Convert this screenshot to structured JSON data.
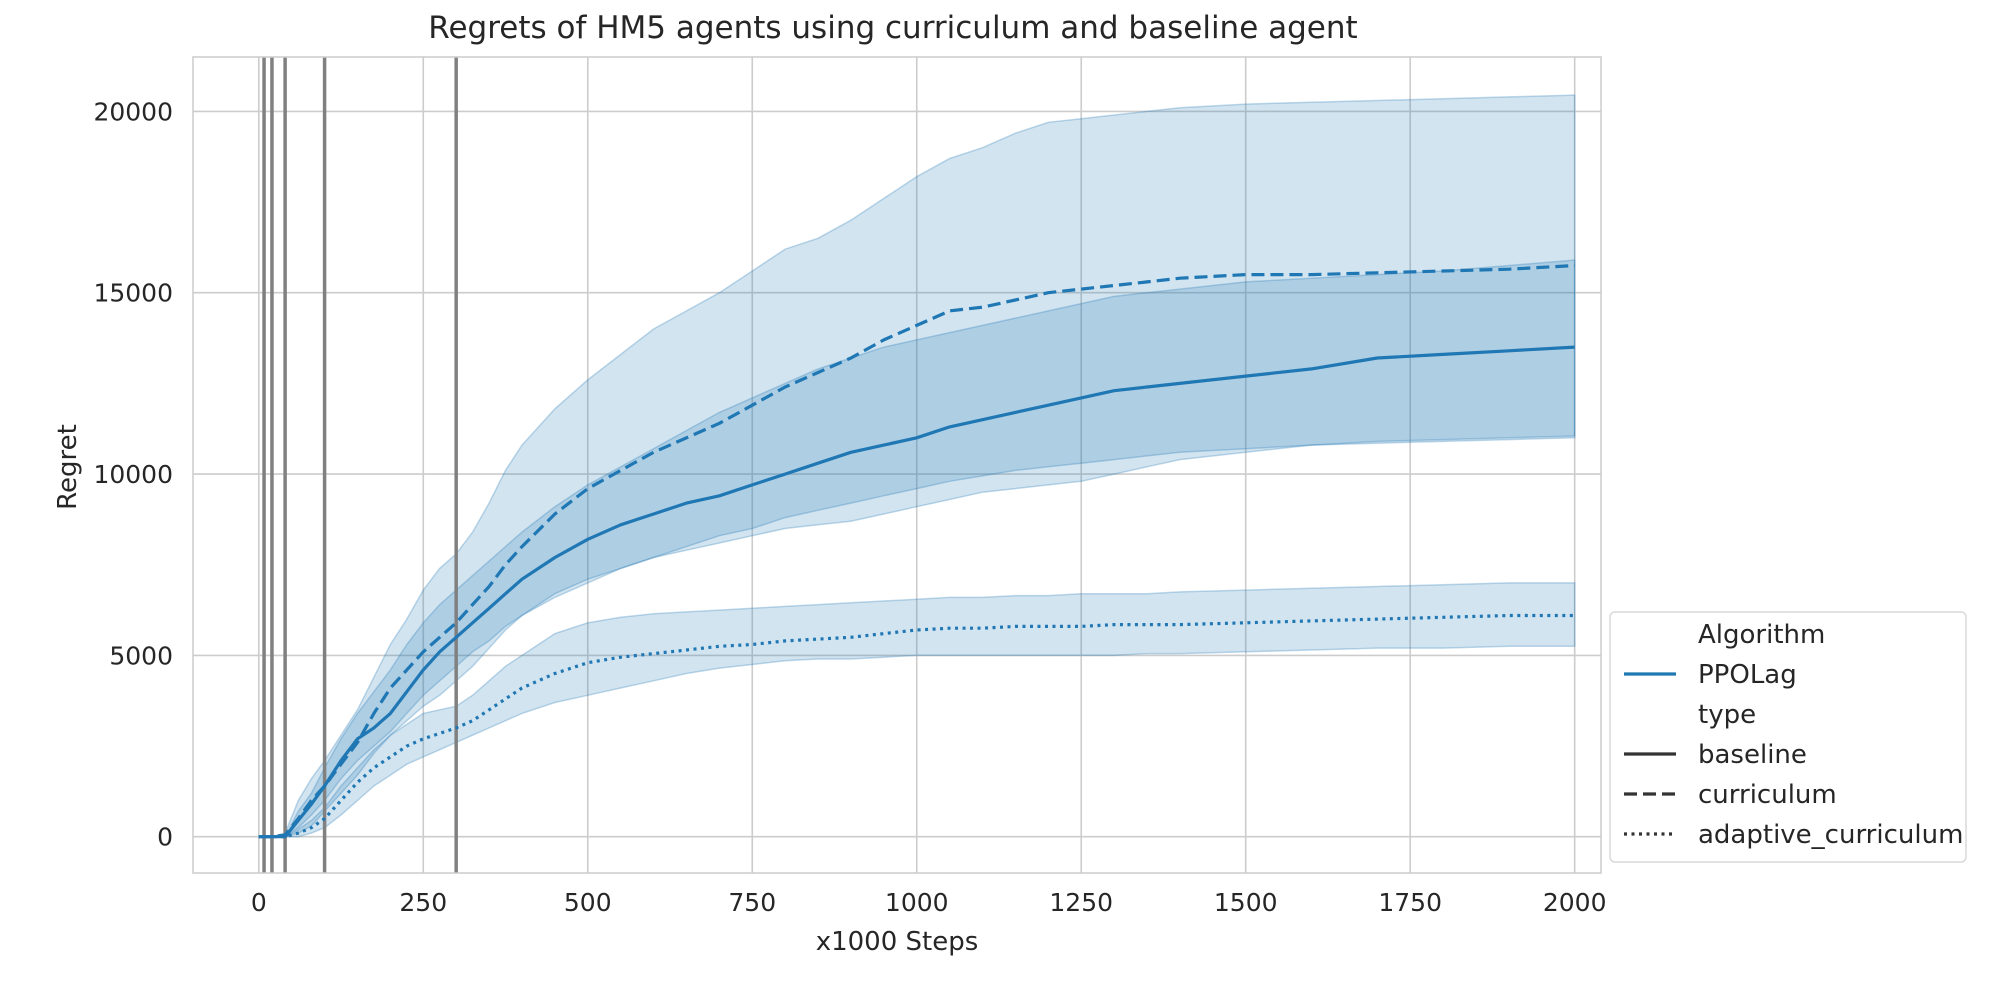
{
  "chart_data": {
    "type": "line",
    "title": "Regrets of HM5 agents using curriculum and baseline agent",
    "xlabel": "x1000 Steps",
    "ylabel": "Regret",
    "xlim": [
      -100,
      2040
    ],
    "ylim": [
      -1000,
      21500
    ],
    "xticks": [
      0,
      250,
      500,
      750,
      1000,
      1250,
      1500,
      1750,
      2000
    ],
    "yticks": [
      0,
      5000,
      10000,
      15000,
      20000
    ],
    "grid": true,
    "color": "#1f77b4",
    "band_color": "#1f77b4",
    "vline_color": "#808080",
    "vertical_lines": [
      8,
      20,
      40,
      100,
      300
    ],
    "legend": {
      "placement": "lower-right, outside",
      "items": [
        {
          "kind": "header",
          "label": "Algorithm"
        },
        {
          "kind": "line",
          "label": "PPOLag",
          "style": "solid",
          "color": "#1f77b4"
        },
        {
          "kind": "header",
          "label": "type"
        },
        {
          "kind": "line",
          "label": "baseline",
          "style": "solid",
          "color": "#333333"
        },
        {
          "kind": "line",
          "label": "curriculum",
          "style": "dashed",
          "color": "#333333"
        },
        {
          "kind": "line",
          "label": "adaptive_curriculum",
          "style": "dotted",
          "color": "#333333"
        }
      ]
    },
    "series": [
      {
        "algorithm": "PPOLag",
        "type": "curriculum",
        "style": "dashed",
        "x": [
          0,
          20,
          40,
          60,
          80,
          100,
          125,
          150,
          175,
          200,
          225,
          250,
          275,
          300,
          325,
          350,
          375,
          400,
          450,
          500,
          550,
          600,
          650,
          700,
          750,
          800,
          850,
          900,
          950,
          1000,
          1050,
          1100,
          1150,
          1200,
          1250,
          1300,
          1350,
          1400,
          1500,
          1600,
          1700,
          1800,
          1900,
          2000
        ],
        "y": [
          0,
          0,
          50,
          500,
          1000,
          1400,
          2000,
          2600,
          3400,
          4100,
          4600,
          5100,
          5500,
          5900,
          6400,
          6900,
          7500,
          8000,
          8900,
          9600,
          10100,
          10600,
          11000,
          11400,
          11900,
          12400,
          12800,
          13200,
          13700,
          14100,
          14500,
          14600,
          14800,
          15000,
          15100,
          15200,
          15300,
          15400,
          15500,
          15500,
          15550,
          15600,
          15650,
          15750
        ],
        "upper": [
          0,
          0,
          100,
          1000,
          1600,
          2100,
          2800,
          3500,
          4400,
          5300,
          6000,
          6800,
          7400,
          7800,
          8400,
          9200,
          10100,
          10800,
          11800,
          12600,
          13300,
          14000,
          14500,
          15000,
          15600,
          16200,
          16500,
          17000,
          17600,
          18200,
          18700,
          19000,
          19400,
          19700,
          19800,
          19900,
          20000,
          20100,
          20200,
          20250,
          20300,
          20350,
          20400,
          20450
        ],
        "lower": [
          0,
          0,
          0,
          100,
          300,
          700,
          1200,
          1700,
          2300,
          2800,
          3200,
          3600,
          3900,
          4300,
          4700,
          5200,
          5700,
          6100,
          6700,
          7100,
          7400,
          7700,
          7900,
          8100,
          8300,
          8500,
          8600,
          8700,
          8900,
          9100,
          9300,
          9500,
          9600,
          9700,
          9800,
          10000,
          10200,
          10400,
          10600,
          10800,
          10900,
          10950,
          11000,
          11050
        ]
      },
      {
        "algorithm": "PPOLag",
        "type": "baseline",
        "style": "solid",
        "x": [
          0,
          20,
          40,
          60,
          80,
          100,
          125,
          150,
          175,
          200,
          225,
          250,
          275,
          300,
          325,
          350,
          375,
          400,
          450,
          500,
          550,
          600,
          650,
          700,
          750,
          800,
          850,
          900,
          950,
          1000,
          1050,
          1100,
          1150,
          1200,
          1250,
          1300,
          1350,
          1400,
          1500,
          1600,
          1700,
          1800,
          1900,
          2000
        ],
        "y": [
          0,
          0,
          0,
          450,
          900,
          1400,
          2100,
          2700,
          3000,
          3400,
          4000,
          4600,
          5100,
          5500,
          5900,
          6300,
          6700,
          7100,
          7700,
          8200,
          8600,
          8900,
          9200,
          9400,
          9700,
          10000,
          10300,
          10600,
          10800,
          11000,
          11300,
          11500,
          11700,
          11900,
          12100,
          12300,
          12400,
          12500,
          12700,
          12900,
          13200,
          13300,
          13400,
          13500
        ],
        "upper": [
          0,
          0,
          0,
          700,
          1200,
          1900,
          2700,
          3400,
          4000,
          4600,
          5300,
          5900,
          6400,
          6800,
          7200,
          7600,
          8000,
          8400,
          9100,
          9700,
          10200,
          10700,
          11200,
          11700,
          12100,
          12500,
          12900,
          13200,
          13500,
          13700,
          13900,
          14100,
          14300,
          14500,
          14700,
          14900,
          15000,
          15100,
          15300,
          15400,
          15500,
          15600,
          15750,
          15900
        ],
        "lower": [
          0,
          0,
          0,
          250,
          600,
          1000,
          1600,
          2100,
          2500,
          2900,
          3400,
          3900,
          4300,
          4700,
          5100,
          5400,
          5800,
          6100,
          6600,
          7000,
          7400,
          7700,
          8000,
          8300,
          8500,
          8800,
          9000,
          9200,
          9400,
          9600,
          9800,
          9950,
          10100,
          10200,
          10300,
          10400,
          10500,
          10600,
          10700,
          10800,
          10850,
          10900,
          10950,
          11000
        ]
      },
      {
        "algorithm": "PPOLag",
        "type": "adaptive_curriculum",
        "style": "dotted",
        "x": [
          0,
          20,
          40,
          60,
          80,
          100,
          125,
          150,
          175,
          200,
          225,
          250,
          275,
          300,
          325,
          350,
          375,
          400,
          450,
          500,
          550,
          600,
          650,
          700,
          750,
          800,
          850,
          900,
          950,
          1000,
          1050,
          1100,
          1150,
          1200,
          1250,
          1300,
          1350,
          1400,
          1500,
          1600,
          1700,
          1800,
          1900,
          2000
        ],
        "y": [
          0,
          0,
          0,
          100,
          250,
          500,
          1000,
          1500,
          1900,
          2200,
          2500,
          2700,
          2850,
          3000,
          3200,
          3500,
          3800,
          4100,
          4500,
          4800,
          4950,
          5050,
          5150,
          5250,
          5300,
          5400,
          5450,
          5500,
          5600,
          5700,
          5750,
          5750,
          5800,
          5800,
          5800,
          5850,
          5850,
          5850,
          5900,
          5950,
          6000,
          6050,
          6100,
          6100
        ],
        "upper": [
          0,
          0,
          0,
          200,
          450,
          800,
          1400,
          1900,
          2400,
          2800,
          3100,
          3400,
          3500,
          3600,
          3900,
          4300,
          4700,
          5000,
          5600,
          5900,
          6050,
          6150,
          6200,
          6250,
          6300,
          6350,
          6400,
          6450,
          6500,
          6550,
          6600,
          6600,
          6650,
          6650,
          6700,
          6700,
          6700,
          6750,
          6800,
          6850,
          6900,
          6950,
          7000,
          7000
        ],
        "lower": [
          0,
          0,
          0,
          0,
          100,
          250,
          600,
          1000,
          1400,
          1700,
          2000,
          2200,
          2400,
          2600,
          2800,
          3000,
          3200,
          3400,
          3700,
          3900,
          4100,
          4300,
          4500,
          4650,
          4750,
          4850,
          4900,
          4900,
          4950,
          5000,
          5000,
          5000,
          5000,
          5000,
          5000,
          5000,
          5050,
          5050,
          5100,
          5150,
          5200,
          5200,
          5250,
          5250
        ]
      }
    ]
  }
}
